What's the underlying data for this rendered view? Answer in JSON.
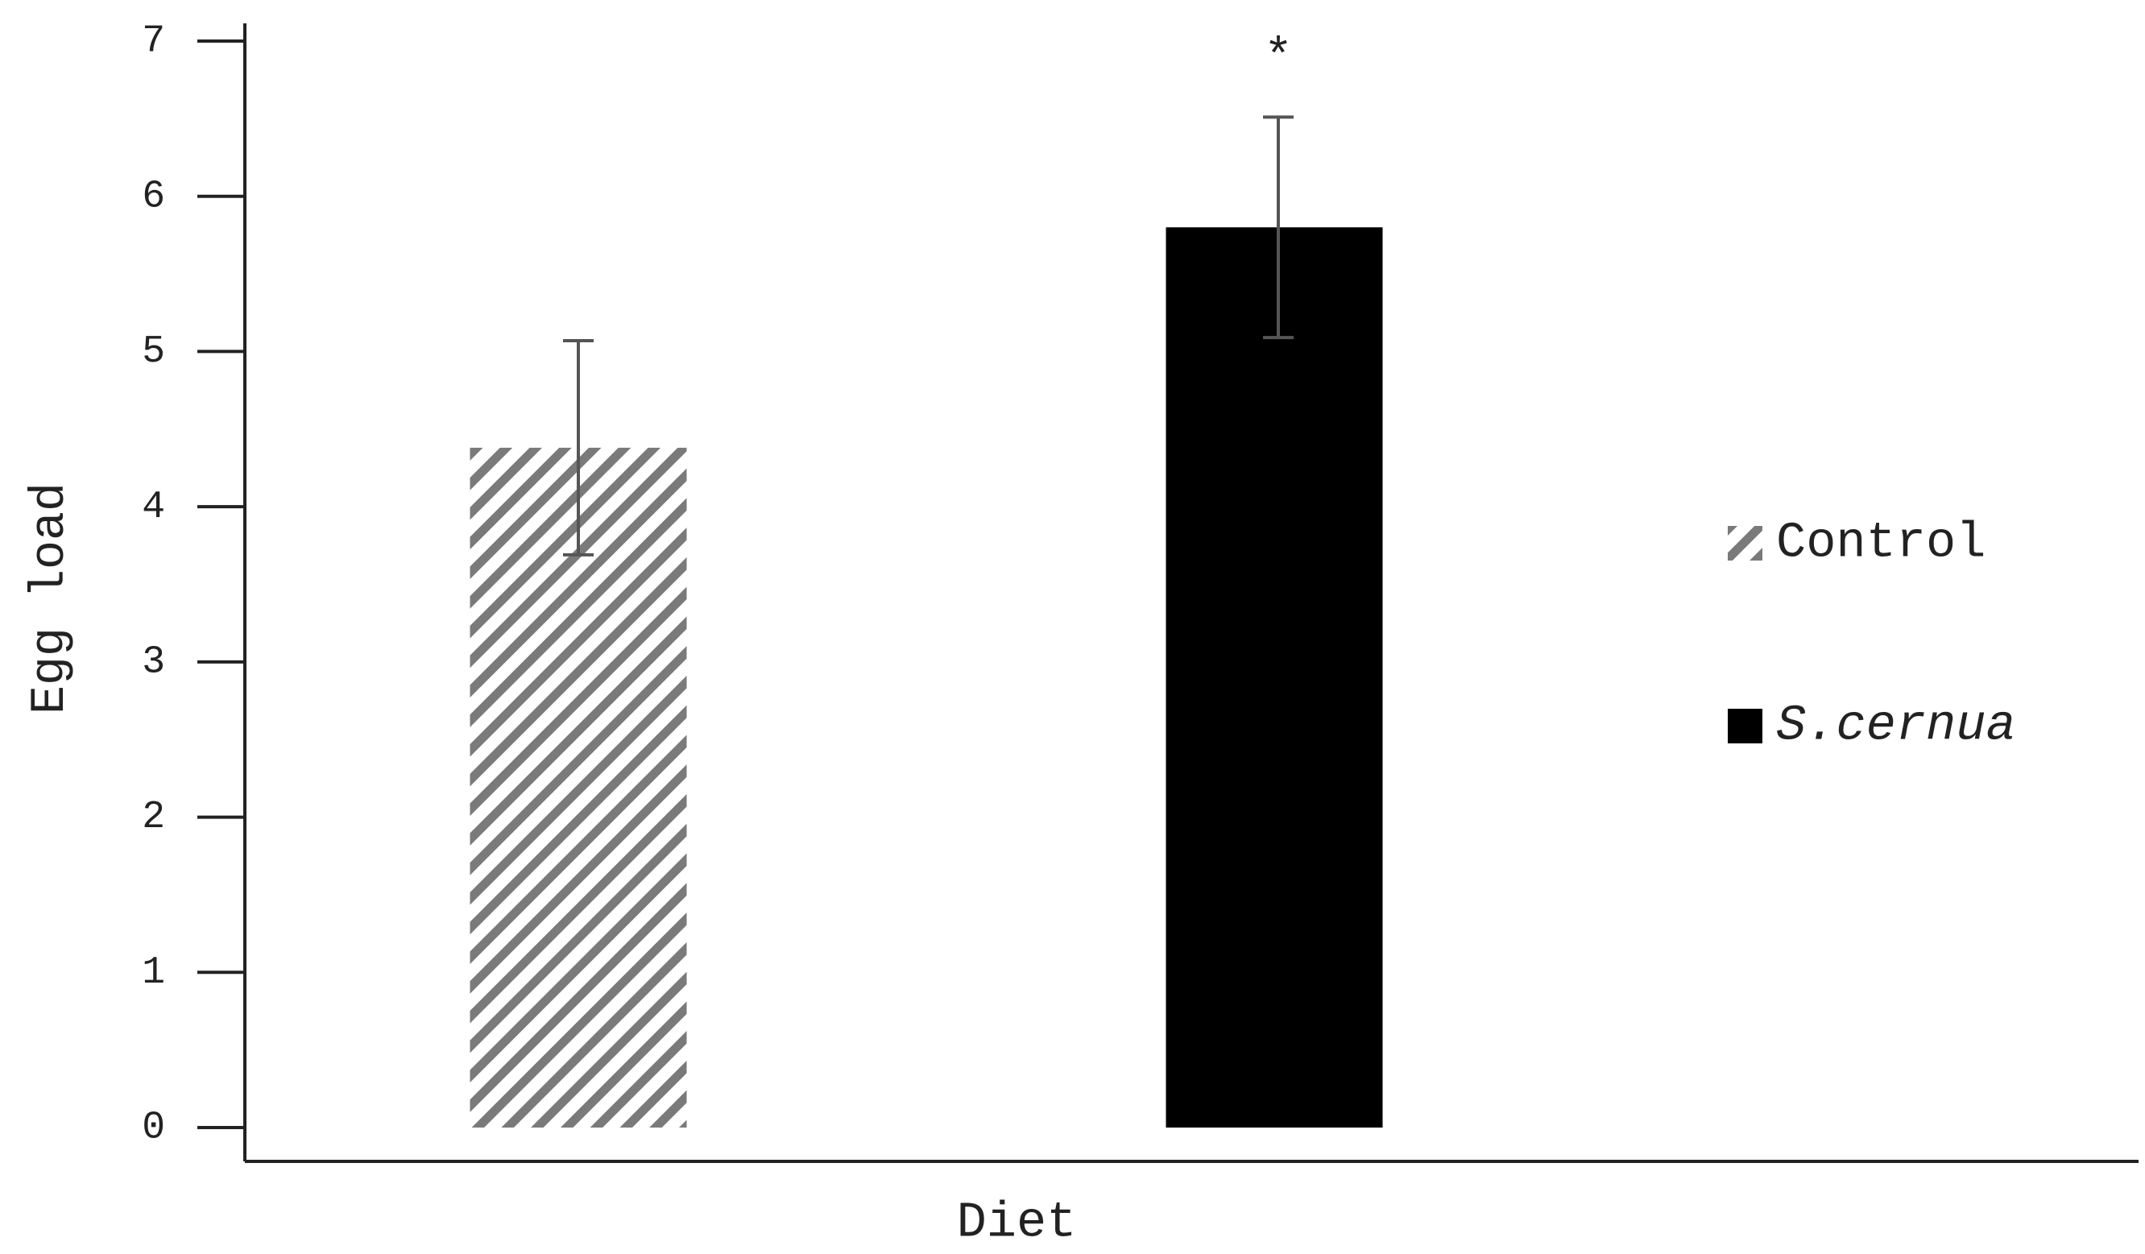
{
  "chart_data": {
    "type": "bar",
    "y_label": "Egg load",
    "x_label": "Diet",
    "categories": [
      null
    ],
    "series": [
      {
        "name": "Control",
        "color": "#7a7a7a",
        "hatch": true,
        "values": [
          4.38
        ],
        "errors": [
          0.69
        ]
      },
      {
        "name": "S.cernua",
        "color": "#000000",
        "hatch": false,
        "values": [
          5.8
        ],
        "errors": [
          0.71
        ]
      }
    ],
    "annotation": "*",
    "ylim": [
      0,
      7
    ],
    "yticks": [
      0,
      1,
      2,
      3,
      4,
      5,
      6,
      7
    ],
    "legend": "right"
  }
}
